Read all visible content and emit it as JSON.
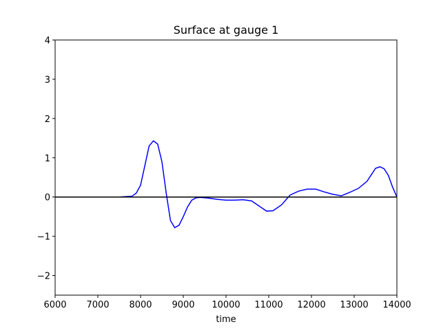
{
  "chart_data": {
    "type": "line",
    "title": "Surface at gauge 1",
    "x_label": "time",
    "x": [
      6000,
      7000,
      7500,
      7800,
      7900,
      8000,
      8100,
      8200,
      8300,
      8400,
      8500,
      8600,
      8700,
      8800,
      8900,
      9000,
      9100,
      9200,
      9300,
      9400,
      9600,
      9800,
      10000,
      10200,
      10400,
      10600,
      10800,
      10950,
      11100,
      11300,
      11500,
      11700,
      11900,
      12100,
      12300,
      12500,
      12700,
      12900,
      13100,
      13300,
      13500,
      13600,
      13700,
      13800,
      13900,
      14000
    ],
    "series": [
      {
        "color": "#0000ff",
        "values": [
          0,
          0,
          0,
          0.02,
          0.1,
          0.3,
          0.8,
          1.3,
          1.43,
          1.35,
          0.9,
          0.1,
          -0.6,
          -0.78,
          -0.72,
          -0.5,
          -0.25,
          -0.08,
          -0.02,
          -0.01,
          -0.03,
          -0.06,
          -0.08,
          -0.08,
          -0.07,
          -0.1,
          -0.25,
          -0.36,
          -0.35,
          -0.2,
          0.05,
          0.15,
          0.2,
          0.2,
          0.13,
          0.07,
          0.03,
          0.12,
          0.22,
          0.4,
          0.73,
          0.77,
          0.72,
          0.55,
          0.25,
          0
        ]
      }
    ],
    "hlines": [
      {
        "y": 0,
        "color": "#000000"
      }
    ],
    "xlim": [
      6000,
      14000
    ],
    "xticks": [
      6000,
      7000,
      8000,
      9000,
      10000,
      11000,
      12000,
      13000,
      14000
    ],
    "ylim": [
      -2.5,
      4
    ],
    "yticks": [
      {
        "value": -2,
        "label": "−2"
      },
      {
        "value": -1,
        "label": "−1"
      },
      0,
      1,
      2,
      3,
      4
    ]
  }
}
